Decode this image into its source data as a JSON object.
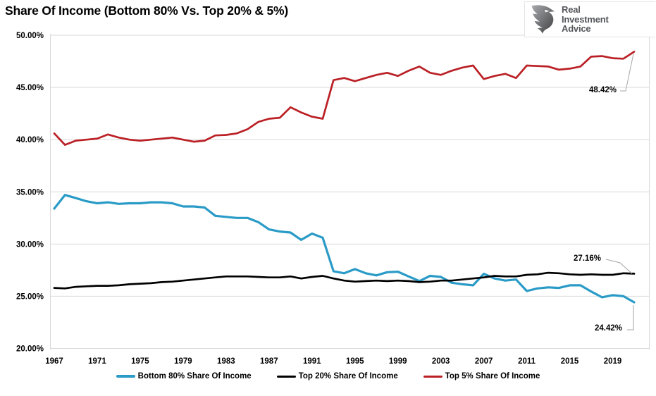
{
  "title": "Share Of Income (Bottom 80% Vs. Top 20% & 5%)",
  "logo": {
    "lines": [
      "Real",
      "Investment",
      "Advice"
    ]
  },
  "y_axis": {
    "tick_labels": [
      "50.00%",
      "45.00%",
      "40.00%",
      "35.00%",
      "30.00%",
      "25.00%",
      "20.00%"
    ],
    "tick_values": [
      50,
      45,
      40,
      35,
      30,
      25,
      20
    ]
  },
  "x_axis": {
    "tick_years": [
      1967,
      1971,
      1975,
      1979,
      1983,
      1987,
      1991,
      1995,
      1999,
      2003,
      2007,
      2011,
      2015,
      2019
    ]
  },
  "legend": {
    "items": [
      {
        "label": "Bottom 80% Share Of Income",
        "color": "#2a9bc7"
      },
      {
        "label": "Top 20% Share Of Income",
        "color": "#000000"
      },
      {
        "label": "Top 5% Share Of Income",
        "color": "#ba2025"
      }
    ]
  },
  "annotations": [
    {
      "text": "48.42%",
      "series": "Top 5% Share Of Income"
    },
    {
      "text": "27.16%",
      "series": "Top 20% Share Of Income"
    },
    {
      "text": "24.42%",
      "series": "Bottom 80% Share Of Income"
    }
  ],
  "chart_data": {
    "type": "line",
    "title": "Share Of Income (Bottom 80% Vs. Top 20% & 5%)",
    "xlabel": "",
    "ylabel": "",
    "ylim": [
      20,
      50
    ],
    "y_tick_step": 5,
    "grid": "horizontal",
    "legend_position": "bottom",
    "x": [
      1967,
      1968,
      1969,
      1970,
      1971,
      1972,
      1973,
      1974,
      1975,
      1976,
      1977,
      1978,
      1979,
      1980,
      1981,
      1982,
      1983,
      1984,
      1985,
      1986,
      1987,
      1988,
      1989,
      1990,
      1991,
      1992,
      1993,
      1994,
      1995,
      1996,
      1997,
      1998,
      1999,
      2000,
      2001,
      2002,
      2003,
      2004,
      2005,
      2006,
      2007,
      2008,
      2009,
      2010,
      2011,
      2012,
      2013,
      2014,
      2015,
      2016,
      2017,
      2018,
      2019,
      2020,
      2021
    ],
    "series": [
      {
        "name": "Bottom 80% Share Of Income",
        "color": "#2a9bc7",
        "width": 3.2,
        "end_label": "24.42%",
        "values": [
          33.4,
          34.7,
          34.4,
          34.1,
          33.9,
          34.0,
          33.85,
          33.9,
          33.9,
          34.0,
          34.0,
          33.9,
          33.6,
          33.6,
          33.5,
          32.7,
          32.6,
          32.5,
          32.5,
          32.1,
          31.4,
          31.2,
          31.1,
          30.4,
          31.0,
          30.6,
          27.4,
          27.2,
          27.6,
          27.2,
          27.0,
          27.3,
          27.35,
          26.9,
          26.45,
          26.95,
          26.85,
          26.3,
          26.15,
          26.05,
          27.15,
          26.7,
          26.5,
          26.6,
          25.5,
          25.75,
          25.85,
          25.8,
          26.05,
          26.05,
          25.45,
          24.9,
          25.1,
          25.0,
          24.42
        ]
      },
      {
        "name": "Top 20% Share Of Income",
        "color": "#000000",
        "width": 2.7,
        "end_label": "27.16%",
        "values": [
          25.8,
          25.75,
          25.9,
          25.95,
          26.0,
          26.0,
          26.05,
          26.15,
          26.2,
          26.25,
          26.35,
          26.4,
          26.5,
          26.6,
          26.7,
          26.8,
          26.9,
          26.9,
          26.9,
          26.85,
          26.8,
          26.8,
          26.9,
          26.7,
          26.85,
          26.95,
          26.7,
          26.5,
          26.4,
          26.45,
          26.5,
          26.45,
          26.5,
          26.45,
          26.35,
          26.4,
          26.5,
          26.5,
          26.6,
          26.7,
          26.8,
          26.95,
          26.9,
          26.9,
          27.05,
          27.1,
          27.25,
          27.2,
          27.1,
          27.05,
          27.1,
          27.05,
          27.05,
          27.2,
          27.16
        ]
      },
      {
        "name": "Top 5% Share Of Income",
        "color": "#ba2025",
        "width": 2.7,
        "end_label": "48.42%",
        "values": [
          40.6,
          39.5,
          39.9,
          40.0,
          40.1,
          40.5,
          40.2,
          40.0,
          39.9,
          40.0,
          40.1,
          40.2,
          40.0,
          39.8,
          39.9,
          40.4,
          40.45,
          40.6,
          41.0,
          41.7,
          42.0,
          42.1,
          43.1,
          42.6,
          42.2,
          42.0,
          45.7,
          45.9,
          45.6,
          45.9,
          46.2,
          46.4,
          46.1,
          46.6,
          47.0,
          46.4,
          46.2,
          46.6,
          46.9,
          47.1,
          45.8,
          46.1,
          46.3,
          45.9,
          47.1,
          47.05,
          47.0,
          46.7,
          46.8,
          47.0,
          47.95,
          48.0,
          47.8,
          47.75,
          48.42
        ]
      }
    ]
  }
}
